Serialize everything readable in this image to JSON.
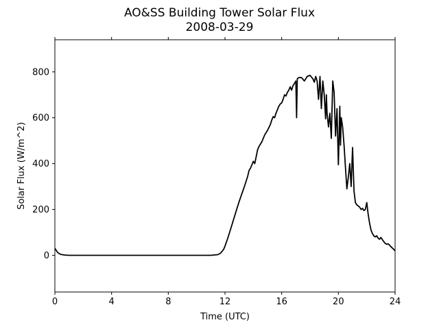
{
  "chart_data": {
    "type": "line",
    "title": "AO&SS Building Tower Solar Flux",
    "subtitle": "2008-03-29",
    "xlabel": "Time (UTC)",
    "ylabel": "Solar Flux (W/m^2)",
    "xlim": [
      0,
      24
    ],
    "ylim": [
      -160,
      940
    ],
    "xticks": [
      0,
      4,
      8,
      12,
      16,
      20,
      24
    ],
    "yticks": [
      0,
      200,
      400,
      600,
      800
    ],
    "x_tick_labels": [
      "0",
      "4",
      "8",
      "12",
      "16",
      "20",
      "24"
    ],
    "y_tick_labels": [
      "0",
      "200",
      "400",
      "600",
      "800"
    ],
    "grid": false,
    "legend": false,
    "line_color": "#000000",
    "series": [
      {
        "x": [
          0,
          0.2,
          0.4,
          0.7,
          1.0,
          4,
          8,
          11.0,
          11.5,
          11.7,
          11.9,
          12.0,
          12.2,
          12.4,
          12.6,
          12.8,
          13.0,
          13.2,
          13.4,
          13.6,
          13.7,
          13.8,
          13.9,
          14.0,
          14.1,
          14.2,
          14.3,
          14.4,
          14.6,
          14.8,
          15.0,
          15.2,
          15.3,
          15.4,
          15.5,
          15.6,
          15.7,
          15.8,
          15.9,
          16.0,
          16.1,
          16.2,
          16.3,
          16.4,
          16.5,
          16.6,
          16.7,
          16.8,
          16.9,
          17.0,
          17.05,
          17.1,
          17.2,
          17.4,
          17.6,
          17.8,
          18.0,
          18.2,
          18.3,
          18.4,
          18.5,
          18.6,
          18.7,
          18.8,
          18.9,
          19.0,
          19.1,
          19.15,
          19.2,
          19.3,
          19.4,
          19.5,
          19.6,
          19.7,
          19.8,
          19.9,
          20.0,
          20.05,
          20.1,
          20.15,
          20.2,
          20.3,
          20.4,
          20.5,
          20.6,
          20.7,
          20.8,
          20.9,
          21.0,
          21.1,
          21.2,
          21.3,
          21.4,
          21.5,
          21.6,
          21.7,
          21.8,
          21.9,
          22.0,
          22.1,
          22.2,
          22.3,
          22.4,
          22.5,
          22.6,
          22.7,
          22.8,
          22.9,
          23.0,
          23.1,
          23.2,
          23.3,
          23.4,
          23.5,
          23.6,
          23.7,
          23.8,
          23.9,
          24.0
        ],
        "y": [
          30,
          12,
          4,
          1,
          0,
          0,
          0,
          0,
          3,
          10,
          25,
          40,
          75,
          115,
          155,
          195,
          235,
          270,
          305,
          345,
          370,
          380,
          395,
          410,
          400,
          430,
          460,
          475,
          495,
          525,
          545,
          570,
          590,
          605,
          600,
          620,
          635,
          650,
          660,
          665,
          680,
          700,
          695,
          710,
          720,
          735,
          720,
          740,
          750,
          760,
          600,
          770,
          775,
          775,
          760,
          780,
          785,
          770,
          755,
          780,
          760,
          680,
          780,
          640,
          760,
          700,
          595,
          700,
          620,
          560,
          620,
          510,
          760,
          710,
          520,
          640,
          395,
          520,
          650,
          480,
          600,
          560,
          480,
          380,
          290,
          340,
          400,
          300,
          470,
          280,
          230,
          220,
          215,
          210,
          200,
          205,
          195,
          200,
          230,
          180,
          140,
          110,
          95,
          85,
          80,
          85,
          75,
          70,
          78,
          68,
          60,
          52,
          48,
          50,
          45,
          38,
          32,
          26,
          20
        ]
      }
    ]
  }
}
